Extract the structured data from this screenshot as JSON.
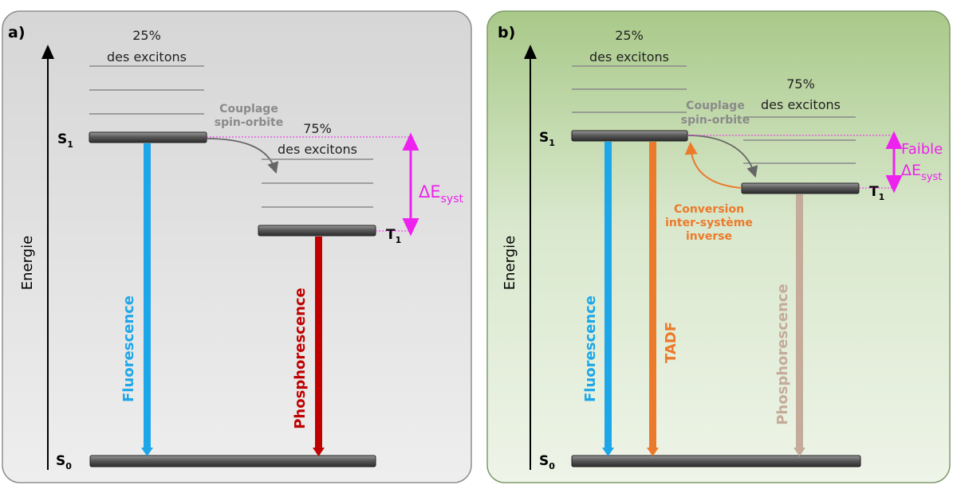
{
  "panel_a": {
    "tag": "a)",
    "axis_label": "Energie",
    "s1": "S",
    "s1_sub": "1",
    "s0": "S",
    "s0_sub": "0",
    "t1": "T",
    "t1_sub": "1",
    "pct_singlet": "25%",
    "excitons_singlet": "des excitons",
    "pct_triplet": "75%",
    "excitons_triplet": "des excitons",
    "soc_line1": "Couplage",
    "soc_line2": "spin-orbite",
    "delta_main": "ΔE",
    "delta_sub": "syst",
    "fluorescence": "Fluorescence",
    "phosphorescence": "Phosphorescence"
  },
  "panel_b": {
    "tag": "b)",
    "axis_label": "Energie",
    "s1": "S",
    "s1_sub": "1",
    "s0": "S",
    "s0_sub": "0",
    "t1": "T",
    "t1_sub": "1",
    "pct_singlet": "25%",
    "excitons_singlet": "des excitons",
    "pct_triplet": "75%",
    "excitons_triplet": "des excitons",
    "soc_line1": "Couplage",
    "soc_line2": "spin-orbite",
    "faible": "Faible",
    "delta_main": "ΔE",
    "delta_sub": "syst",
    "risc_line1": "Conversion",
    "risc_line2": "inter-système",
    "risc_line3": "inverse",
    "fluorescence": "Fluorescence",
    "tadf": "TADF",
    "phosphorescence": "Phosphorescence"
  },
  "colors": {
    "fluorescence": "#1ea7e8",
    "phosphorescence_a": "#c00000",
    "phosphorescence_b": "#c4ab9a",
    "tadf": "#ec7a2b",
    "delta": "#ee22ee",
    "soc_text": "#8a8a8a",
    "level_bar": "#606060"
  }
}
